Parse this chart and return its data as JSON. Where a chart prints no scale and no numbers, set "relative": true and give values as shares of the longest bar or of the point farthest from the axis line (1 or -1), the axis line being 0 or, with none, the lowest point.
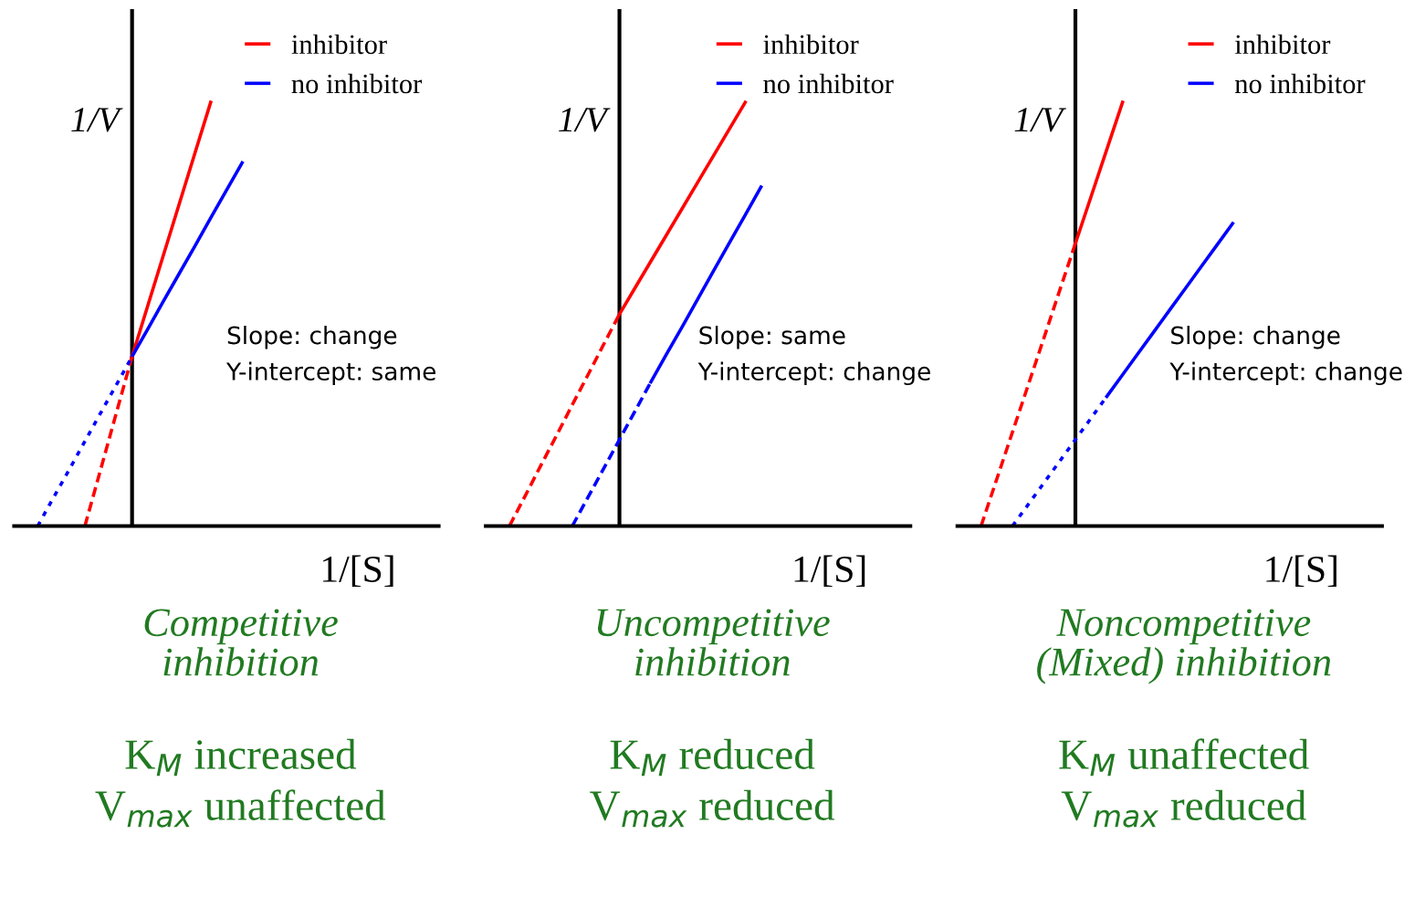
{
  "chart_data": [
    {
      "type": "line",
      "relative": true,
      "xlabel": "1/[S]",
      "ylabel": "1/V",
      "title": "Competitive\ninhibition",
      "subtitle": "K$_{M}$ increased\nV$_{max}$ unaffected",
      "annotations": [
        "Slope: change\nY-intercept: same"
      ],
      "legend": "top right",
      "categories": [
        null,
        null,
        null,
        null,
        null,
        null,
        null,
        null,
        null,
        null,
        null,
        null,
        null,
        null,
        null,
        null,
        null,
        null,
        null,
        null,
        null,
        null,
        null,
        null,
        null,
        null,
        null
      ],
      "series": [
        {
          "name": "inhibitor",
          "color": "#ff0000",
          "line_style": "solid",
          "values": [
            null,
            null,
            null,
            null,
            null,
            null,
            null,
            0.4,
            0.52,
            0.64,
            0.76,
            0.88,
            1,
            null,
            null,
            null,
            null,
            null,
            null,
            null,
            null,
            null,
            null,
            null,
            null,
            null,
            null
          ]
        },
        {
          "name": "no inhibitor",
          "color": "#0000ff",
          "line_style": "solid",
          "values": [
            null,
            null,
            null,
            null,
            null,
            null,
            null,
            0.4,
            0.465,
            0.531,
            0.596,
            0.661,
            0.727,
            0.792,
            0.857,
            null,
            null,
            null,
            null,
            null,
            null,
            null,
            null,
            null,
            null,
            null,
            null
          ]
        },
        {
          "color": "#ff0000",
          "line_style": "dashed",
          "values": [
            null,
            null,
            null,
            null,
            0,
            0.133,
            0.267,
            0.4,
            null,
            null,
            null,
            null,
            null,
            null,
            null,
            null,
            null,
            null,
            null,
            null,
            null,
            null,
            null,
            null,
            null,
            null,
            null
          ]
        },
        {
          "color": "#0000ff",
          "line_style": "dotted",
          "values": [
            null,
            0,
            0.067,
            0.133,
            0.2,
            0.267,
            0.333,
            0.4,
            null,
            null,
            null,
            null,
            null,
            null,
            null,
            null,
            null,
            null,
            null,
            null,
            null,
            null,
            null,
            null,
            null,
            null,
            null
          ]
        }
      ]
    },
    {
      "type": "line",
      "relative": true,
      "xlabel": "1/[S]",
      "ylabel": "1/V",
      "title": "Uncompetitive\ninhibition",
      "subtitle": "K$_{M}$ reduced\nV$_{max}$ reduced",
      "annotations": [
        "Slope: same\nY-intercept: change"
      ],
      "legend": "top right",
      "categories": [
        null,
        null,
        null,
        null,
        null,
        null,
        null,
        null,
        null,
        null,
        null,
        null,
        null,
        null,
        null,
        null,
        null,
        null,
        null,
        null,
        null,
        null,
        null,
        null,
        null,
        null,
        null
      ],
      "series": [
        {
          "name": "inhibitor",
          "color": "#ff0000",
          "line_style": "solid",
          "values": [
            null,
            null,
            null,
            null,
            null,
            null,
            null,
            null,
            0.5,
            0.5625,
            0.625,
            0.6875,
            0.75,
            0.8125,
            0.875,
            0.9375,
            1,
            null,
            null,
            null,
            null,
            null,
            null,
            null,
            null,
            null,
            null
          ]
        },
        {
          "name": "no inhibitor",
          "color": "#0000ff",
          "line_style": "solid",
          "values": [
            null,
            null,
            null,
            null,
            null,
            null,
            null,
            null,
            null,
            null,
            0.34,
            0.406,
            0.471,
            0.537,
            0.603,
            0.669,
            0.734,
            0.8,
            null,
            null,
            null,
            null,
            null,
            null,
            null,
            null,
            null
          ]
        },
        {
          "color": "#ff0000",
          "line_style": "dashed",
          "values": [
            null,
            0,
            0.071,
            0.143,
            0.214,
            0.286,
            0.357,
            0.429,
            0.5,
            null,
            null,
            null,
            null,
            null,
            null,
            null,
            null,
            null,
            null,
            null,
            null,
            null,
            null,
            null,
            null,
            null,
            null
          ]
        },
        {
          "color": "#0000ff",
          "line_style": "dashed",
          "values": [
            null,
            null,
            null,
            null,
            null,
            0,
            0.068,
            0.136,
            0.204,
            0.272,
            0.34,
            null,
            null,
            null,
            null,
            null,
            null,
            null,
            null,
            null,
            null,
            null,
            null,
            null,
            null,
            null,
            null
          ]
        }
      ]
    },
    {
      "type": "line",
      "relative": true,
      "xlabel": "1/[S]",
      "ylabel": "1/V",
      "title": "Noncompetitive\n(Mixed) inhibition",
      "subtitle": "K$_{M}$ unaffected\nV$_{max}$ reduced",
      "annotations": [
        "Slope: change\nY-intercept: change"
      ],
      "legend": "top right",
      "categories": [
        null,
        null,
        null,
        null,
        null,
        null,
        null,
        null,
        null,
        null,
        null,
        null,
        null,
        null,
        null,
        null,
        null,
        null,
        null,
        null,
        null,
        null,
        null,
        null,
        null,
        null,
        null
      ],
      "series": [
        {
          "name": "inhibitor",
          "color": "#ff0000",
          "line_style": "solid",
          "values": [
            null,
            null,
            null,
            null,
            null,
            null,
            null,
            0.667,
            0.778,
            0.889,
            1,
            null,
            null,
            null,
            null,
            null,
            null,
            null,
            null,
            null,
            null,
            null,
            null,
            null,
            null,
            null,
            null
          ]
        },
        {
          "name": "no inhibitor",
          "color": "#0000ff",
          "line_style": "solid",
          "values": [
            null,
            null,
            null,
            null,
            null,
            null,
            null,
            null,
            null,
            0.306,
            0.357,
            0.408,
            0.459,
            0.51,
            0.561,
            0.612,
            0.663,
            0.714,
            null,
            null,
            null,
            null,
            null,
            null,
            null,
            null,
            null
          ]
        },
        {
          "color": "#ff0000",
          "line_style": "dashed",
          "values": [
            null,
            0,
            0.111,
            0.222,
            0.333,
            0.444,
            0.556,
            0.667,
            null,
            null,
            null,
            null,
            null,
            null,
            null,
            null,
            null,
            null,
            null,
            null,
            null,
            null,
            null,
            null,
            null,
            null,
            null
          ]
        },
        {
          "color": "#0000ff",
          "line_style": "dotted",
          "values": [
            null,
            null,
            null,
            0,
            0.051,
            0.102,
            0.153,
            0.204,
            0.255,
            0.306,
            null,
            null,
            null,
            null,
            null,
            null,
            null,
            null,
            null,
            null,
            null,
            null,
            null,
            null,
            null,
            null,
            null
          ]
        }
      ]
    }
  ]
}
